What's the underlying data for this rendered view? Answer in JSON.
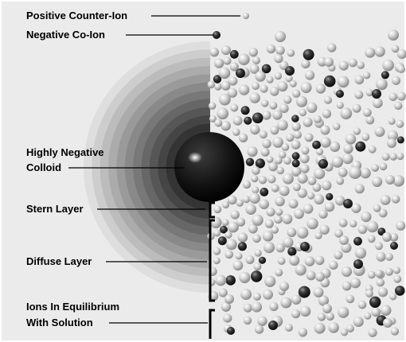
{
  "labels": {
    "positive_counter_ion": "Positive Counter-Ion",
    "negative_co_ion": "Negative Co-Ion",
    "colloid_line1": "Highly Negative",
    "colloid_line2": "Colloid",
    "stern_layer": "Stern Layer",
    "diffuse_layer": "Diffuse Layer",
    "equilibrium_line1": "Ions In Equilibrium",
    "equilibrium_line2": "With Solution"
  },
  "colors": {
    "panel_background": "#ebebeb",
    "positive_ion": "#d0d0d0",
    "negative_ion": "#2a2a2a",
    "colloid": "#111111",
    "bracket": "#000000"
  },
  "legend": {
    "positive_ion": "light sphere",
    "negative_ion": "dark sphere"
  }
}
